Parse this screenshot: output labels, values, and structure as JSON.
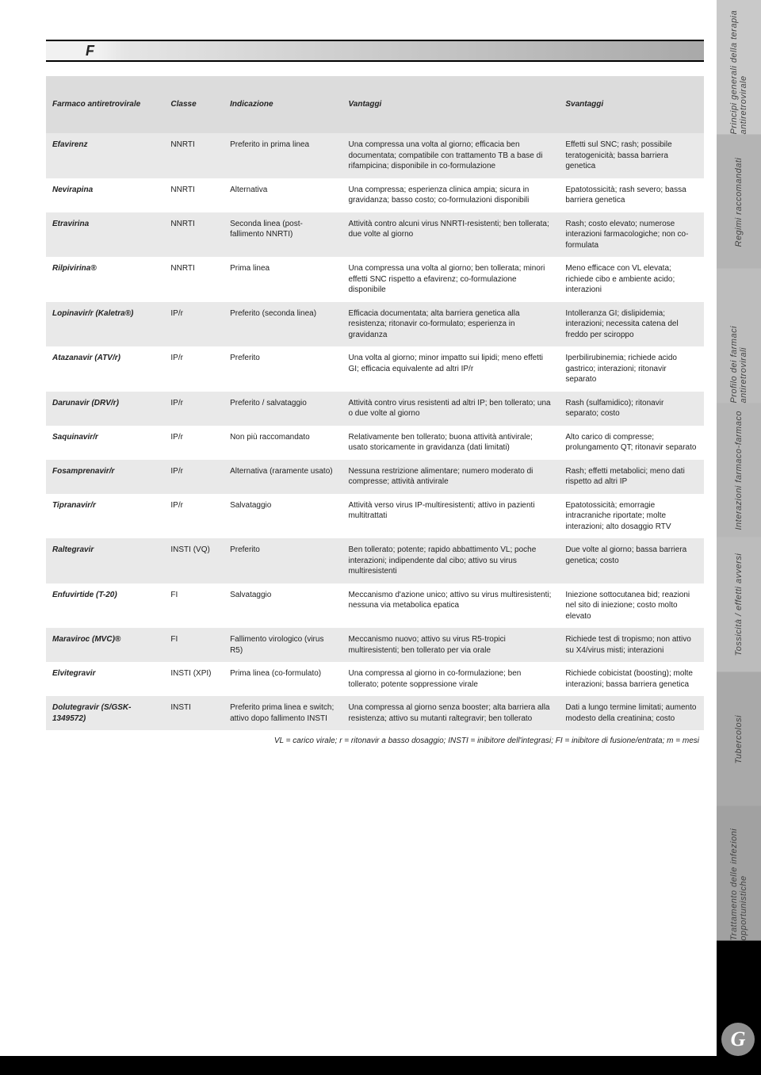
{
  "section_label": "F",
  "side_tabs": [
    "Principi generali della terapia antiretrovirale",
    "Regimi raccomandati",
    "Profilo dei farmaci antiretrovirali",
    "Interazioni farmaco-farmaco",
    "Tossicità / effetti avversi",
    "Tubercolosi",
    "Trattamento delle infezioni opportunistiche",
    ""
  ],
  "page_number": "G",
  "table": {
    "headers": [
      "Farmaco antiretrovirale",
      "Classe",
      "Indicazione",
      "Vantaggi",
      "Svantaggi"
    ],
    "rows": [
      {
        "shade": true,
        "name": "Efavirenz",
        "type": "NNRTI",
        "ind": "Preferito in prima linea",
        "adv": "Una compressa una volta al giorno; efficacia ben documentata; compatibile con trattamento TB a base di rifampicina; disponibile in co-formulazione",
        "dis": "Effetti sul SNC; rash; possibile teratogenicità; bassa barriera genetica"
      },
      {
        "shade": false,
        "name": "Nevirapina",
        "type": "NNRTI",
        "ind": "Alternativa",
        "adv": "Una compressa; esperienza clinica ampia; sicura in gravidanza; basso costo; co-formulazioni disponibili",
        "dis": "Epatotossicità; rash severo; bassa barriera genetica"
      },
      {
        "shade": true,
        "name": "Etravirina",
        "type": "NNRTI",
        "ind": "Seconda linea (post-fallimento NNRTI)",
        "adv": "Attività contro alcuni virus NNRTI-resistenti; ben tollerata; due volte al giorno",
        "dis": "Rash; costo elevato; numerose interazioni farmacologiche; non co-formulata"
      },
      {
        "shade": false,
        "name": "Rilpivirina®",
        "type": "NNRTI",
        "ind": "Prima linea",
        "adv": "Una compressa una volta al giorno; ben tollerata; minori effetti SNC rispetto a efavirenz; co-formulazione disponibile",
        "dis": "Meno efficace con VL elevata; richiede cibo e ambiente acido; interazioni"
      },
      {
        "shade": true,
        "name": "Lopinavir/r (Kaletra®)",
        "type": "IP/r",
        "ind": "Preferito (seconda linea)",
        "adv": "Efficacia documentata; alta barriera genetica alla resistenza; ritonavir co-formulato; esperienza in gravidanza",
        "dis": "Intolleranza GI; dislipidemia; interazioni; necessita catena del freddo per sciroppo"
      },
      {
        "shade": false,
        "name": "Atazanavir (ATV/r)",
        "type": "IP/r",
        "ind": "Preferito",
        "adv": "Una volta al giorno; minor impatto sui lipidi; meno effetti GI; efficacia equivalente ad altri IP/r",
        "dis": "Iperbilirubinemia; richiede acido gastrico; interazioni; ritonavir separato"
      },
      {
        "shade": true,
        "name": "Darunavir (DRV/r)",
        "type": "IP/r",
        "ind": "Preferito / salvataggio",
        "adv": "Attività contro virus resistenti ad altri IP; ben tollerato; una o due volte al giorno",
        "dis": "Rash (sulfamidico); ritonavir separato; costo"
      },
      {
        "shade": false,
        "name": "Saquinavir/r",
        "type": "IP/r",
        "ind": "Non più raccomandato",
        "adv": "Relativamente ben tollerato; buona attività antivirale; usato storicamente in gravidanza (dati limitati)",
        "dis": "Alto carico di compresse; prolungamento QT; ritonavir separato"
      },
      {
        "shade": true,
        "name": "Fosamprenavir/r",
        "type": "IP/r",
        "ind": "Alternativa (raramente usato)",
        "adv": "Nessuna restrizione alimentare; numero moderato di compresse; attività antivirale",
        "dis": "Rash; effetti metabolici; meno dati rispetto ad altri IP"
      },
      {
        "shade": false,
        "name": "Tipranavir/r",
        "type": "IP/r",
        "ind": "Salvataggio",
        "adv": "Attività verso virus IP-multiresistenti; attivo in pazienti multitrattati",
        "dis": "Epatotossicità; emorragie intracraniche riportate; molte interazioni; alto dosaggio RTV"
      },
      {
        "shade": true,
        "name": "Raltegravir",
        "type": "INSTI (VQ)",
        "ind": "Preferito",
        "adv": "Ben tollerato; potente; rapido abbattimento VL; poche interazioni; indipendente dal cibo; attivo su virus multiresistenti",
        "dis": "Due volte al giorno; bassa barriera genetica; costo"
      },
      {
        "shade": false,
        "name": "Enfuvirtide (T-20)",
        "type": "FI",
        "ind": "Salvataggio",
        "adv": "Meccanismo d'azione unico; attivo su virus multiresistenti; nessuna via metabolica epatica",
        "dis": "Iniezione sottocutanea bid; reazioni nel sito di iniezione; costo molto elevato"
      },
      {
        "shade": true,
        "name": "Maraviroc (MVC)®",
        "type": "FI",
        "ind": "Fallimento virologico (virus R5)",
        "adv": "Meccanismo nuovo; attivo su virus R5-tropici multiresistenti; ben tollerato per via orale",
        "dis": "Richiede test di tropismo; non attivo su X4/virus misti; interazioni"
      },
      {
        "shade": false,
        "name": "Elvitegravir",
        "type": "INSTI (XPI)",
        "ind": "Prima linea (co-formulato)",
        "adv": "Una compressa al giorno in co-formulazione; ben tollerato; potente soppressione virale",
        "dis": "Richiede cobicistat (boosting); molte interazioni; bassa barriera genetica"
      },
      {
        "shade": true,
        "name": "Dolutegravir (S/GSK-1349572)",
        "type": "INSTI",
        "ind": "Preferito prima linea e switch; attivo dopo fallimento INSTI",
        "adv": "Una compressa al giorno senza booster; alta barriera alla resistenza; attivo su mutanti raltegravir; ben tollerato",
        "dis": "Dati a lungo termine limitati; aumento modesto della creatinina; costo"
      }
    ]
  },
  "footnote": "VL = carico virale; r = ritonavir a basso dosaggio; INSTI = inibitore dell'integrasi; FI = inibitore di fusione/entrata; m = mesi"
}
